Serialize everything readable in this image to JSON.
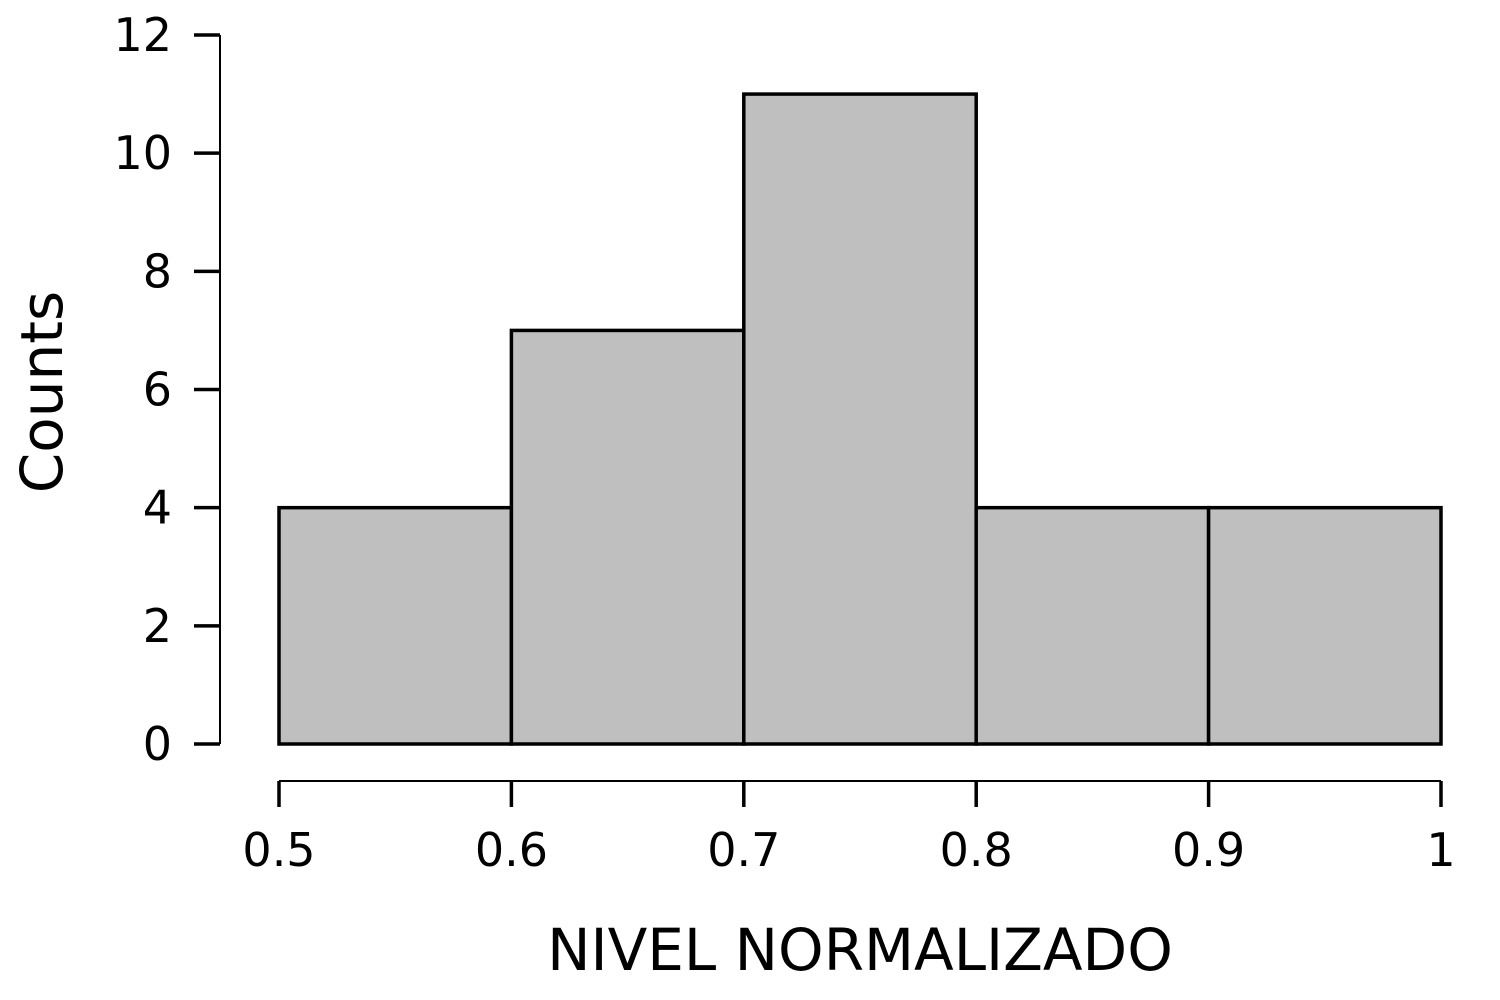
{
  "chart_data": {
    "type": "bar",
    "subtype": "histogram",
    "xlabel": "NIVEL NORMALIZADO",
    "ylabel": "Counts",
    "bins": [
      {
        "x0": 0.5,
        "x1": 0.6,
        "count": 4
      },
      {
        "x0": 0.6,
        "x1": 0.7,
        "count": 7
      },
      {
        "x0": 0.7,
        "x1": 0.8,
        "count": 11
      },
      {
        "x0": 0.8,
        "x1": 0.9,
        "count": 4
      },
      {
        "x0": 0.9,
        "x1": 1.0,
        "count": 4
      }
    ],
    "xticks": [
      0.5,
      0.6,
      0.7,
      0.8,
      0.9,
      1
    ],
    "xtick_labels": [
      "0.5",
      "0.6",
      "0.7",
      "0.8",
      "0.9",
      "1"
    ],
    "yticks": [
      0,
      2,
      4,
      6,
      8,
      10,
      12
    ],
    "ytick_labels": [
      "0",
      "2",
      "4",
      "6",
      "8",
      "10",
      "12"
    ],
    "xlim": [
      0.5,
      1.0
    ],
    "ylim": [
      0,
      12
    ],
    "grid": false,
    "colors": {
      "bar_fill": "#bfbfbf",
      "bar_stroke": "#000000",
      "axis": "#000000"
    }
  }
}
